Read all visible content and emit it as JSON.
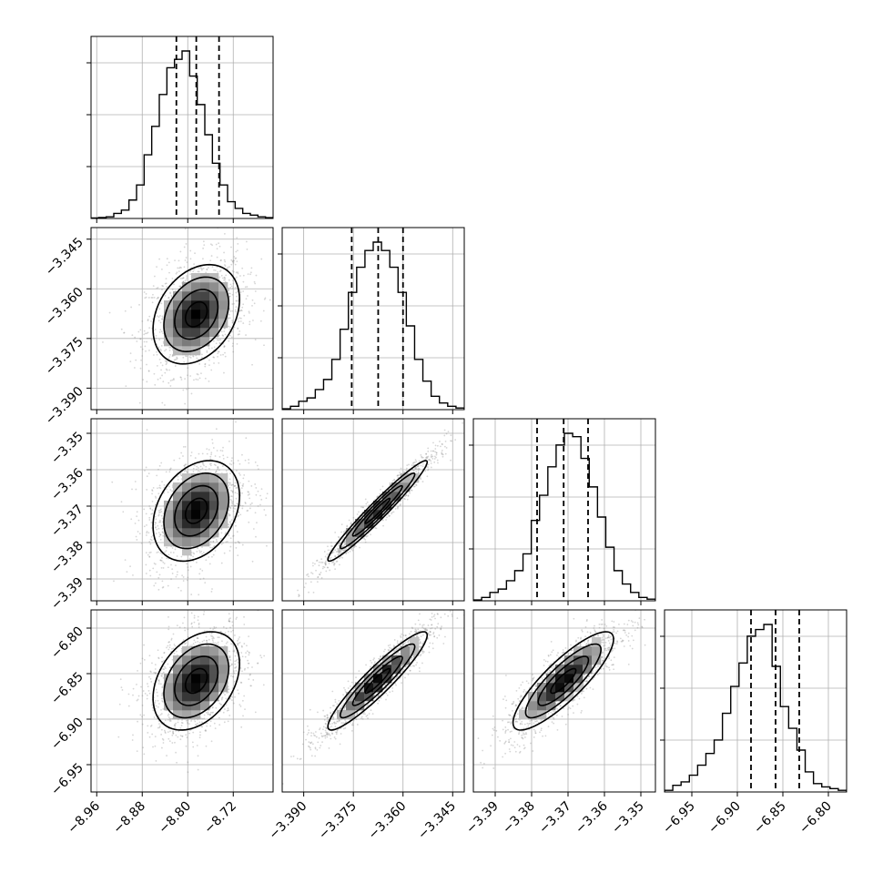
{
  "chart_data": {
    "type": "corner",
    "title": "",
    "parameters": [
      {
        "index": 0,
        "range": [
          -8.97,
          -8.65
        ],
        "ticks": [
          "-8.96",
          "-8.88",
          "-8.80",
          "-8.72"
        ],
        "tick_values": [
          -8.96,
          -8.88,
          -8.8,
          -8.72
        ],
        "quantiles": [
          -8.82,
          -8.785,
          -8.745
        ],
        "mean": -8.785,
        "std": 0.038
      },
      {
        "index": 1,
        "range": [
          -3.3965,
          -3.3415
        ],
        "ticks": [
          "-3.390",
          "-3.375",
          "-3.360",
          "-3.345"
        ],
        "tick_values": [
          -3.39,
          -3.375,
          -3.36,
          -3.345
        ],
        "quantiles": [
          -3.3755,
          -3.3675,
          -3.36
        ],
        "mean": -3.3677,
        "std": 0.0075
      },
      {
        "index": 2,
        "range": [
          -3.396,
          -3.346
        ],
        "ticks": [
          "-3.39",
          "-3.38",
          "-3.37",
          "-3.36",
          "-3.35"
        ],
        "tick_values": [
          -3.39,
          -3.38,
          -3.37,
          -3.36,
          -3.35
        ],
        "quantiles": [
          -3.3785,
          -3.3712,
          -3.3645
        ],
        "mean": -3.3713,
        "std": 0.0069
      },
      {
        "index": 3,
        "range": [
          -6.98,
          -6.78
        ],
        "ticks": [
          "-6.95",
          "-6.90",
          "-6.85",
          "-6.80"
        ],
        "tick_values": [
          -6.95,
          -6.9,
          -6.85,
          -6.8
        ],
        "quantiles": [
          -6.885,
          -6.858,
          -6.832
        ],
        "mean": -6.858,
        "std": 0.027
      }
    ],
    "correlations": [
      [
        1,
        0.3,
        0.3,
        0.35
      ],
      [
        0.3,
        1,
        0.97,
        0.93
      ],
      [
        0.3,
        0.97,
        1,
        0.85
      ],
      [
        0.35,
        0.93,
        0.85,
        1
      ]
    ],
    "histograms": [
      [
        0.003,
        0.006,
        0.01,
        0.03,
        0.05,
        0.11,
        0.2,
        0.38,
        0.55,
        0.74,
        0.9,
        0.95,
        1.0,
        0.85,
        0.68,
        0.5,
        0.33,
        0.2,
        0.1,
        0.06,
        0.03,
        0.02,
        0.01,
        0.005
      ],
      [
        0.005,
        0.02,
        0.05,
        0.07,
        0.12,
        0.18,
        0.3,
        0.48,
        0.7,
        0.85,
        0.95,
        1.0,
        0.95,
        0.85,
        0.7,
        0.5,
        0.3,
        0.17,
        0.08,
        0.04,
        0.02,
        0.01
      ],
      [
        0.005,
        0.02,
        0.05,
        0.07,
        0.12,
        0.18,
        0.28,
        0.48,
        0.63,
        0.8,
        0.93,
        1.0,
        0.98,
        0.85,
        0.68,
        0.5,
        0.32,
        0.18,
        0.1,
        0.05,
        0.02,
        0.01
      ],
      [
        0.01,
        0.04,
        0.06,
        0.1,
        0.16,
        0.23,
        0.31,
        0.47,
        0.63,
        0.77,
        0.93,
        0.97,
        1.0,
        0.75,
        0.51,
        0.38,
        0.25,
        0.12,
        0.05,
        0.03,
        0.02,
        0.01
      ]
    ],
    "contour_levels_sigma": [
      0.5,
      1.0,
      1.5,
      2.0
    ],
    "grid": true,
    "colors": {
      "line": "#000000",
      "points": "#8a8a8a",
      "grid": "#b0b0b0",
      "density_max": "#000000",
      "density_min": "#ffffff"
    }
  }
}
